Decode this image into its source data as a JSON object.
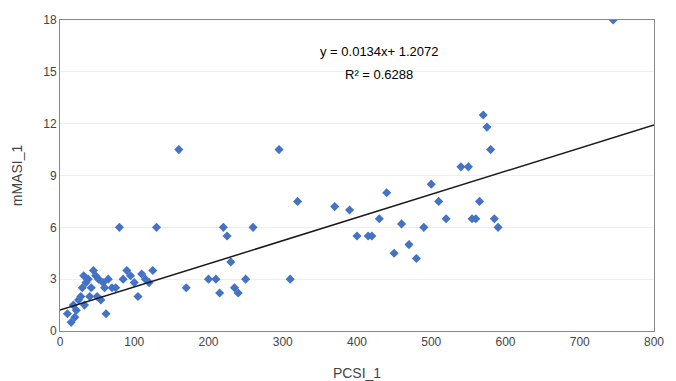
{
  "chart_data": {
    "type": "scatter",
    "xlabel": "PCSI_1",
    "ylabel": "mMASI_1",
    "xlim": [
      0,
      800
    ],
    "ylim": [
      0,
      18
    ],
    "xticks": [
      0,
      100,
      200,
      300,
      400,
      500,
      600,
      700,
      800
    ],
    "yticks": [
      0,
      3,
      6,
      9,
      12,
      15,
      18
    ],
    "grid": "y",
    "series": [
      {
        "type": "scatter",
        "color": "#4472C4",
        "marker": "diamond",
        "x": [
          10,
          15,
          18,
          20,
          22,
          25,
          28,
          30,
          32,
          33,
          35,
          38,
          40,
          42,
          45,
          48,
          50,
          52,
          55,
          58,
          60,
          62,
          65,
          70,
          75,
          80,
          85,
          90,
          95,
          100,
          105,
          110,
          115,
          120,
          125,
          130,
          160,
          170,
          200,
          210,
          215,
          220,
          225,
          230,
          235,
          240,
          250,
          260,
          295,
          310,
          320,
          370,
          390,
          400,
          415,
          420,
          430,
          440,
          450,
          460,
          470,
          480,
          490,
          500,
          510,
          520,
          540,
          550,
          555,
          560,
          565,
          570,
          575,
          580,
          585,
          590,
          745
        ],
        "values": [
          1.0,
          0.5,
          1.5,
          0.8,
          1.2,
          1.8,
          2.0,
          2.5,
          3.2,
          1.5,
          2.8,
          3.0,
          2.0,
          2.5,
          3.5,
          3.2,
          2.0,
          3.0,
          1.8,
          2.8,
          2.5,
          1.0,
          3.0,
          2.5,
          2.5,
          6.0,
          3.0,
          3.5,
          3.2,
          2.8,
          2.0,
          3.3,
          3.0,
          2.8,
          3.5,
          6.0,
          10.5,
          2.5,
          3.0,
          3.0,
          2.2,
          6.0,
          5.5,
          4.0,
          2.5,
          2.2,
          3.0,
          6.0,
          10.5,
          3.0,
          7.5,
          7.2,
          7.0,
          5.5,
          5.5,
          5.5,
          6.5,
          8.0,
          4.5,
          6.2,
          5.0,
          4.2,
          6.0,
          8.5,
          7.5,
          6.5,
          9.5,
          9.5,
          6.5,
          6.5,
          7.5,
          12.5,
          11.8,
          10.5,
          6.5,
          6.0,
          18.0
        ]
      },
      {
        "type": "line",
        "color": "#1a1a1a",
        "line_style": "solid",
        "x": [
          0,
          800
        ],
        "values": [
          1.2072,
          11.9272
        ]
      }
    ],
    "annotations": [
      "y = 0.0134x+ 1.2072",
      "R² = 0.6288"
    ]
  }
}
